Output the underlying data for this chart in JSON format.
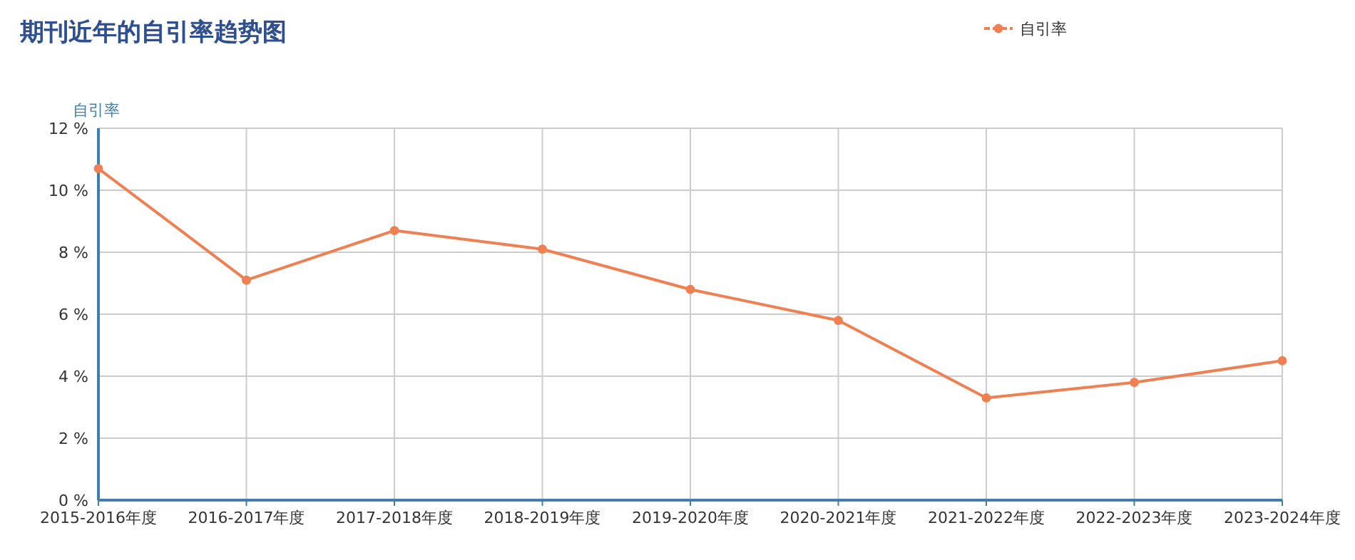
{
  "chart_data": {
    "type": "line",
    "title": "期刊近年的自引率趋势图",
    "ylabel": "自引率",
    "categories": [
      "2015-2016年度",
      "2016-2017年度",
      "2017-2018年度",
      "2018-2019年度",
      "2019-2020年度",
      "2020-2021年度",
      "2021-2022年度",
      "2022-2023年度",
      "2023-2024年度"
    ],
    "series": [
      {
        "name": "自引率",
        "color": "#f07f52",
        "values": [
          10.7,
          7.1,
          8.7,
          8.1,
          6.8,
          5.8,
          3.3,
          3.8,
          4.5
        ]
      }
    ],
    "ylim": [
      0,
      12
    ],
    "yticks": [
      {
        "value": 0,
        "label": "0 %"
      },
      {
        "value": 2,
        "label": "2 %"
      },
      {
        "value": 4,
        "label": "4 %"
      },
      {
        "value": 6,
        "label": "6 %"
      },
      {
        "value": 8,
        "label": "8 %"
      },
      {
        "value": 10,
        "label": "10 %"
      },
      {
        "value": 12,
        "label": "12 %"
      }
    ],
    "grid": true,
    "legend": "top right",
    "marker": "circle",
    "line_style": "solid"
  }
}
